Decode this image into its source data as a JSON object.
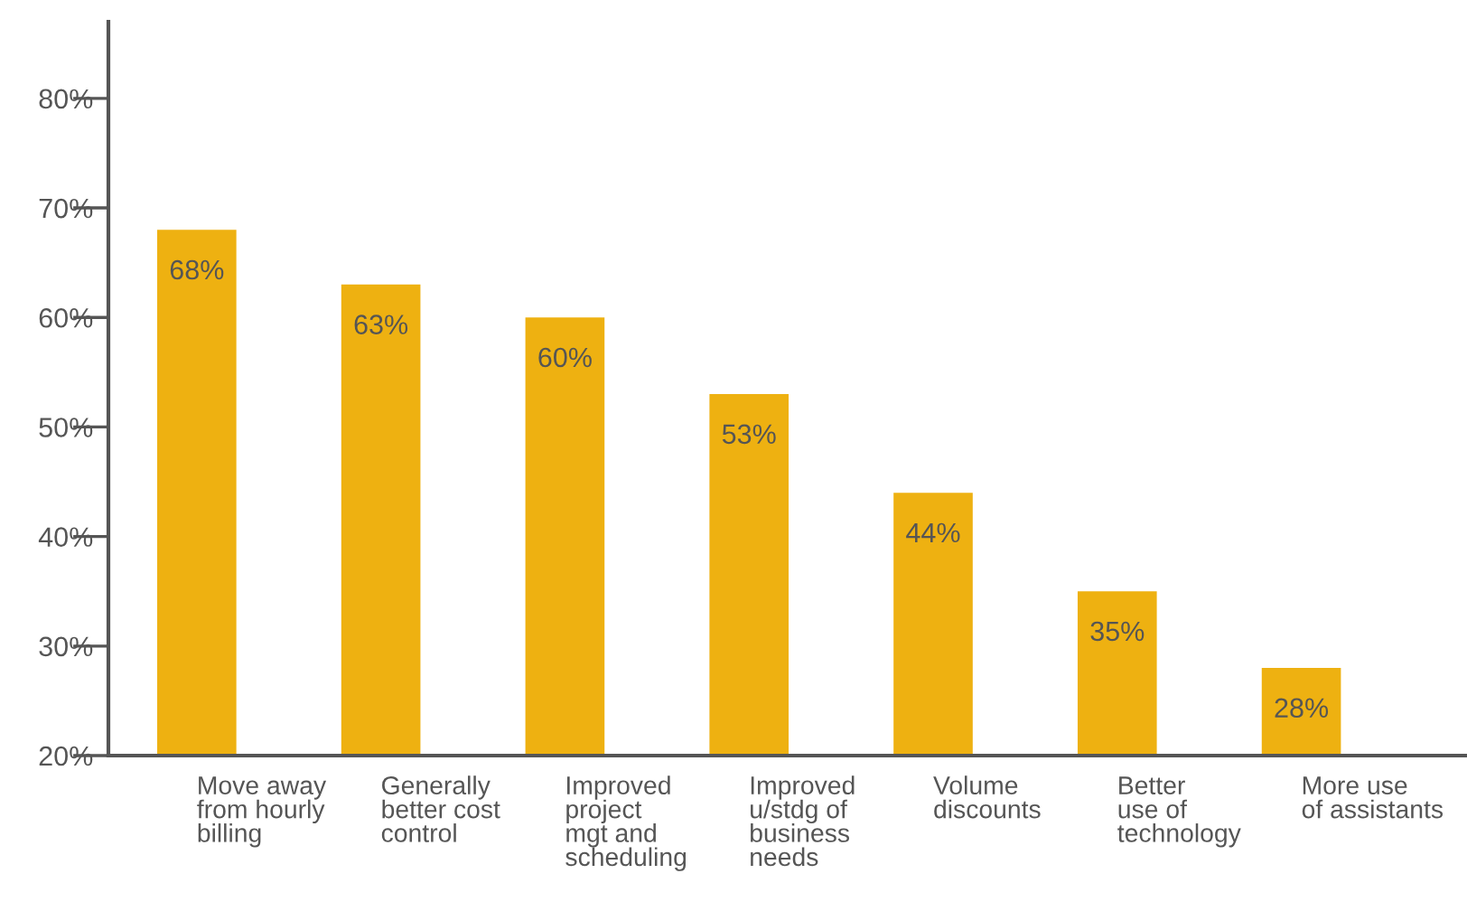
{
  "chart_data": {
    "type": "bar",
    "categories": [
      "Move away\nfrom hourly\nbilling",
      "Generally\nbetter cost\ncontrol",
      "Improved\nproject\nmgt and\nscheduling",
      "Improved\nu/stdg of\nbusiness\nneeds",
      "Volume\ndiscounts",
      "Better\nuse of\ntechnology",
      "More use\nof assistants"
    ],
    "values": [
      68,
      63,
      60,
      53,
      44,
      35,
      28
    ],
    "value_labels": [
      "68%",
      "63%",
      "60%",
      "53%",
      "44%",
      "35%",
      "28%"
    ],
    "color": "#eeb111",
    "ylim": [
      20,
      87
    ],
    "yticks": [
      {
        "value": 20,
        "label": "20%"
      },
      {
        "value": 30,
        "label": "30%"
      },
      {
        "value": 40,
        "label": "40%"
      },
      {
        "value": 50,
        "label": "50%"
      },
      {
        "value": 60,
        "label": "60%"
      },
      {
        "value": 70,
        "label": "70%"
      },
      {
        "value": 80,
        "label": "80%"
      }
    ],
    "grid": false
  }
}
